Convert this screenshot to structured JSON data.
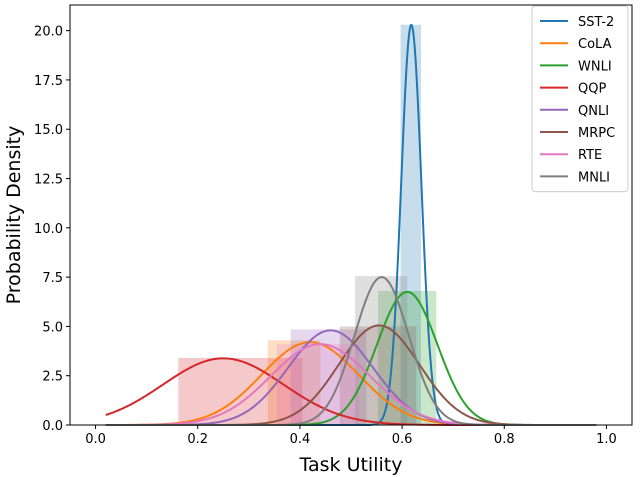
{
  "chart_data": {
    "type": "area",
    "xlabel": "Task Utility",
    "ylabel": "Probability Density",
    "xlim": [
      -0.05,
      1.05
    ],
    "ylim": [
      0,
      21.3
    ],
    "xticks": [
      "0.0",
      "0.2",
      "0.4",
      "0.6",
      "0.8",
      "1.0"
    ],
    "xtick_values": [
      0.0,
      0.2,
      0.4,
      0.6,
      0.8,
      1.0
    ],
    "yticks": [
      "0.0",
      "2.5",
      "5.0",
      "7.5",
      "10.0",
      "12.5",
      "15.0",
      "17.5",
      "20.0"
    ],
    "ytick_values": [
      0.0,
      2.5,
      5.0,
      7.5,
      10.0,
      12.5,
      15.0,
      17.5,
      20.0
    ],
    "grid": false,
    "legend_position": "top-right",
    "series": [
      {
        "name": "SST-2",
        "color": "#1f77b4",
        "mean": 0.618,
        "sd": 0.0197,
        "peak": 20.3,
        "hist": [
          {
            "x0": 0.597,
            "x1": 0.637,
            "height": 20.3
          }
        ]
      },
      {
        "name": "CoLA",
        "color": "#ff7f0e",
        "mean": 0.42,
        "sd": 0.095,
        "peak": 4.2,
        "hist": [
          {
            "x0": 0.337,
            "x1": 0.44,
            "height": 4.3
          }
        ]
      },
      {
        "name": "WNLI",
        "color": "#2ca02c",
        "mean": 0.61,
        "sd": 0.059,
        "peak": 6.75,
        "hist": [
          {
            "x0": 0.553,
            "x1": 0.667,
            "height": 6.8
          }
        ]
      },
      {
        "name": "QQP",
        "color": "#d62728",
        "mean": 0.25,
        "sd": 0.118,
        "peak": 3.38,
        "hist": [
          {
            "x0": 0.162,
            "x1": 0.405,
            "height": 3.4
          }
        ]
      },
      {
        "name": "QNLI",
        "color": "#9467bd",
        "mean": 0.46,
        "sd": 0.083,
        "peak": 4.8,
        "hist": [
          {
            "x0": 0.382,
            "x1": 0.53,
            "height": 4.85
          }
        ]
      },
      {
        "name": "MRPC",
        "color": "#8c564b",
        "mean": 0.555,
        "sd": 0.079,
        "peak": 5.05,
        "hist": [
          {
            "x0": 0.478,
            "x1": 0.628,
            "height": 5.0
          }
        ]
      },
      {
        "name": "RTE",
        "color": "#e377c2",
        "mean": 0.44,
        "sd": 0.097,
        "peak": 4.1,
        "hist": [
          {
            "x0": 0.355,
            "x1": 0.515,
            "height": 4.1
          }
        ]
      },
      {
        "name": "MNLI",
        "color": "#7f7f7f",
        "mean": 0.56,
        "sd": 0.053,
        "peak": 7.5,
        "hist": [
          {
            "x0": 0.508,
            "x1": 0.61,
            "height": 7.55
          }
        ]
      }
    ]
  }
}
